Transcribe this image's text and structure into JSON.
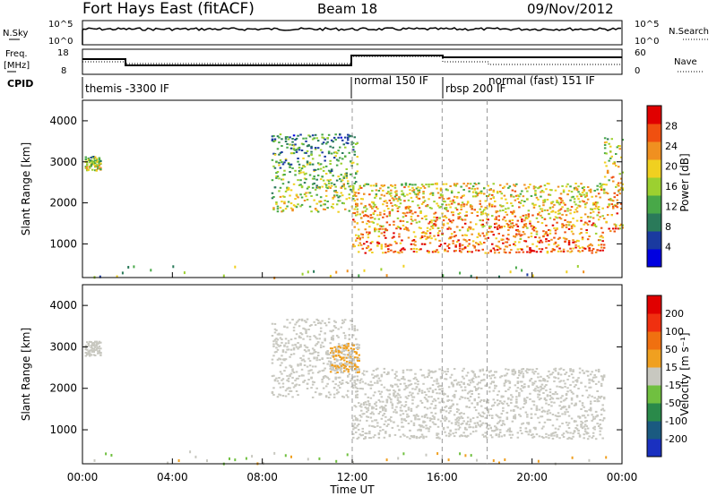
{
  "header": {
    "title": "Fort Hays East (fitACF)",
    "beam": "Beam 18",
    "date": "09/Nov/2012"
  },
  "strips": {
    "nsky": {
      "label": "N.Sky",
      "ticks": [
        "10^5",
        "10^0"
      ],
      "right_ticks": [
        "10^5",
        "10^0"
      ],
      "right_label": "N.Search"
    },
    "freq": {
      "label": "Freq.",
      "unit": "[MHz]",
      "ticks": [
        "18",
        "8"
      ],
      "right_ticks": [
        "60",
        "0"
      ],
      "right_label": "Nave"
    },
    "cpid": {
      "label": "CPID",
      "segments": [
        {
          "text": "themis -3300 IF",
          "start_hour": 0.0
        },
        {
          "text": "normal 150 IF",
          "start_hour": 12.0
        },
        {
          "text": "rbsp 200 IF",
          "start_hour": 16.0
        },
        {
          "text": "normal (fast) 151 IF",
          "start_hour": 18.0
        }
      ]
    }
  },
  "chart_data": [
    {
      "type": "heatmap",
      "name": "power-panel",
      "ylabel": "Slant Range [km]",
      "xlabel": "",
      "xlim": [
        0,
        24
      ],
      "ylim": [
        180,
        4500
      ],
      "yticks": [
        "1000",
        "2000",
        "3000",
        "4000"
      ],
      "colorbar": {
        "label": "Power [dB]",
        "ticks": [
          "28",
          "24",
          "20",
          "16",
          "12",
          "8",
          "4"
        ],
        "colors": [
          "#0000e0",
          "#1a3aa0",
          "#2a7a5a",
          "#48a848",
          "#9cd030",
          "#f0d020",
          "#f09020",
          "#f05010",
          "#e00000"
        ],
        "range": [
          0,
          32
        ]
      },
      "features": [
        {
          "hour_start": 0.1,
          "hour_end": 0.8,
          "range_low": 2800,
          "range_high": 3150,
          "level": 20
        },
        {
          "hour_start": 8.4,
          "hour_end": 12.2,
          "range_low": 1800,
          "range_high": 3700,
          "level": 18
        },
        {
          "hour_start": 12.0,
          "hour_end": 23.2,
          "range_low": 800,
          "range_high": 2500,
          "level": 26
        },
        {
          "hour_start": 23.2,
          "hour_end": 24.0,
          "range_low": 1300,
          "range_high": 3600,
          "level": 24
        }
      ]
    },
    {
      "type": "heatmap",
      "name": "velocity-panel",
      "ylabel": "Slant Range [km]",
      "xlabel": "Time UT",
      "xlim": [
        0,
        24
      ],
      "ylim": [
        180,
        4500
      ],
      "xticks": [
        "00:00",
        "04:00",
        "08:00",
        "12:00",
        "16:00",
        "20:00",
        "00:00"
      ],
      "yticks": [
        "1000",
        "2000",
        "3000",
        "4000"
      ],
      "colorbar": {
        "label": "Velocity [m s⁻¹]",
        "ticks": [
          "200",
          "100",
          "50",
          "15",
          "-15",
          "-50",
          "-100",
          "-200"
        ],
        "colors": [
          "#1a30c0",
          "#1a5a80",
          "#2a8a4a",
          "#70c040",
          "#c8c8c0",
          "#f0a020",
          "#f07010",
          "#f03010",
          "#e00000"
        ],
        "range": [
          -250,
          250
        ]
      },
      "features": [
        {
          "hour_start": 0.1,
          "hour_end": 0.8,
          "range_low": 2800,
          "range_high": 3150,
          "level": 0
        },
        {
          "hour_start": 8.4,
          "hour_end": 12.2,
          "range_low": 1800,
          "range_high": 3700,
          "level": 0
        },
        {
          "hour_start": 12.0,
          "hour_end": 23.2,
          "range_low": 800,
          "range_high": 2500,
          "level": 0
        },
        {
          "hour_start": 11.0,
          "hour_end": 12.3,
          "range_low": 2400,
          "range_high": 3100,
          "level": 30
        }
      ]
    }
  ]
}
